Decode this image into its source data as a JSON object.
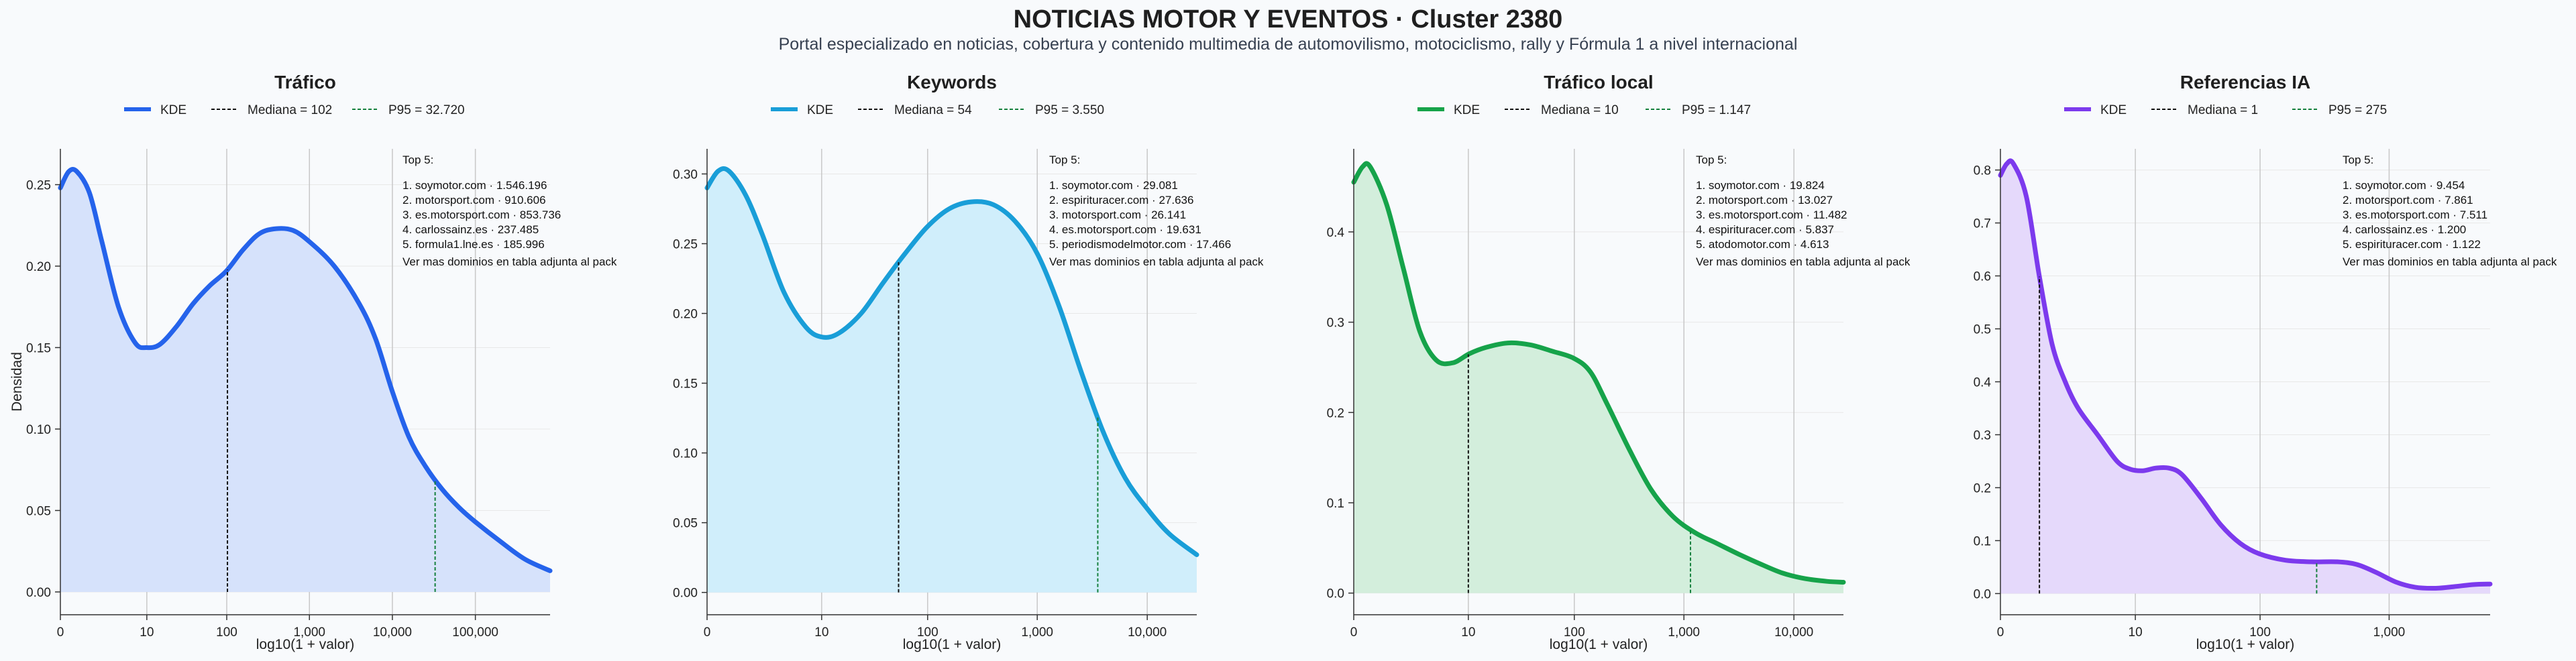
{
  "title": "NOTICIAS MOTOR Y EVENTOS · Cluster 2380",
  "subtitle": "Portal especializado en noticias, cobertura y contenido multimedia de automovilismo, motociclismo, rally y Fórmula 1 a nivel internacional",
  "chart_data": [
    {
      "type": "area",
      "title": "Tráfico",
      "xlabel": "log10(1 + valor)",
      "ylabel": "Densidad",
      "color": "#2563eb",
      "fill": "#d6e2fb",
      "xlim": [
        0,
        5.9
      ],
      "ylim": [
        -0.014,
        0.272
      ],
      "xticks": [
        {
          "v": 0,
          "label": "0"
        },
        {
          "v": 1.0414,
          "label": "10"
        },
        {
          "v": 2.0043,
          "label": "100"
        },
        {
          "v": 3.0004,
          "label": "1,000"
        },
        {
          "v": 4.0,
          "label": "10,000"
        },
        {
          "v": 5.0,
          "label": "100,000"
        }
      ],
      "yticks": [
        0,
        0.05,
        0.1,
        0.15,
        0.2,
        0.25
      ],
      "ytick_labels": [
        "0.00",
        "0.05",
        "0.10",
        "0.15",
        "0.20",
        "0.25"
      ],
      "legend": {
        "kde": "KDE",
        "median": "Mediana = 102",
        "p95": "P95 = 32.720"
      },
      "median_x": 2.0128,
      "p95_x": 4.5148,
      "curve": [
        [
          0,
          0.248
        ],
        [
          0.1,
          0.258
        ],
        [
          0.2,
          0.258
        ],
        [
          0.35,
          0.245
        ],
        [
          0.5,
          0.215
        ],
        [
          0.7,
          0.175
        ],
        [
          0.9,
          0.153
        ],
        [
          1.04,
          0.15
        ],
        [
          1.2,
          0.152
        ],
        [
          1.4,
          0.163
        ],
        [
          1.6,
          0.177
        ],
        [
          1.8,
          0.188
        ],
        [
          2.0,
          0.197
        ],
        [
          2.2,
          0.21
        ],
        [
          2.4,
          0.22
        ],
        [
          2.6,
          0.223
        ],
        [
          2.8,
          0.222
        ],
        [
          3.0,
          0.215
        ],
        [
          3.3,
          0.2
        ],
        [
          3.6,
          0.177
        ],
        [
          3.8,
          0.155
        ],
        [
          4.0,
          0.123
        ],
        [
          4.2,
          0.095
        ],
        [
          4.4,
          0.077
        ],
        [
          4.6,
          0.063
        ],
        [
          4.8,
          0.052
        ],
        [
          5.0,
          0.043
        ],
        [
          5.3,
          0.031
        ],
        [
          5.6,
          0.02
        ],
        [
          5.9,
          0.013
        ]
      ],
      "top5": {
        "heading": "Top 5:",
        "items": [
          "1. soymotor.com · 1.546.196",
          "2. motorsport.com · 910.606",
          "3. es.motorsport.com · 853.736",
          "4. carlossainz.es · 237.485",
          "5. formula1.lne.es · 185.996"
        ],
        "footer": "Ver mas dominios en tabla adjunta al pack"
      }
    },
    {
      "type": "area",
      "title": "Keywords",
      "xlabel": "log10(1 + valor)",
      "ylabel": "",
      "color": "#199ed8",
      "fill": "#d0eefb",
      "xlim": [
        0,
        4.45
      ],
      "ylim": [
        -0.016,
        0.318
      ],
      "xticks": [
        {
          "v": 0,
          "label": "0"
        },
        {
          "v": 1.0414,
          "label": "10"
        },
        {
          "v": 2.0043,
          "label": "100"
        },
        {
          "v": 3.0004,
          "label": "1,000"
        },
        {
          "v": 4.0,
          "label": "10,000"
        }
      ],
      "yticks": [
        0,
        0.05,
        0.1,
        0.15,
        0.2,
        0.25,
        0.3
      ],
      "ytick_labels": [
        "0.00",
        "0.05",
        "0.10",
        "0.15",
        "0.20",
        "0.25",
        "0.30"
      ],
      "legend": {
        "kde": "KDE",
        "median": "Mediana = 54",
        "p95": "P95 = 3.550"
      },
      "median_x": 1.7404,
      "p95_x": 3.5504,
      "curve": [
        [
          0,
          0.29
        ],
        [
          0.1,
          0.302
        ],
        [
          0.2,
          0.302
        ],
        [
          0.35,
          0.285
        ],
        [
          0.5,
          0.257
        ],
        [
          0.7,
          0.215
        ],
        [
          0.9,
          0.19
        ],
        [
          1.05,
          0.183
        ],
        [
          1.2,
          0.186
        ],
        [
          1.4,
          0.2
        ],
        [
          1.6,
          0.222
        ],
        [
          1.8,
          0.243
        ],
        [
          2.0,
          0.262
        ],
        [
          2.2,
          0.275
        ],
        [
          2.4,
          0.28
        ],
        [
          2.6,
          0.278
        ],
        [
          2.8,
          0.266
        ],
        [
          3.0,
          0.243
        ],
        [
          3.2,
          0.205
        ],
        [
          3.4,
          0.158
        ],
        [
          3.6,
          0.115
        ],
        [
          3.8,
          0.082
        ],
        [
          4.0,
          0.06
        ],
        [
          4.2,
          0.042
        ],
        [
          4.45,
          0.027
        ]
      ],
      "top5": {
        "heading": "Top 5:",
        "items": [
          "1. soymotor.com · 29.081",
          "2. espirituracer.com · 27.636",
          "3. motorsport.com · 26.141",
          "4. es.motorsport.com · 19.631",
          "5. periodismodelmotor.com · 17.466"
        ],
        "footer": "Ver mas dominios en tabla adjunta al pack"
      }
    },
    {
      "type": "area",
      "title": "Tráfico local",
      "xlabel": "log10(1 + valor)",
      "ylabel": "",
      "color": "#16a34a",
      "fill": "#d3eedc",
      "xlim": [
        0,
        4.45
      ],
      "ylim": [
        -0.024,
        0.492
      ],
      "xticks": [
        {
          "v": 0,
          "label": "0"
        },
        {
          "v": 1.0414,
          "label": "10"
        },
        {
          "v": 2.0043,
          "label": "100"
        },
        {
          "v": 3.0004,
          "label": "1,000"
        },
        {
          "v": 4.0,
          "label": "10,000"
        }
      ],
      "yticks": [
        0,
        0.1,
        0.2,
        0.3,
        0.4
      ],
      "ytick_labels": [
        "0.0",
        "0.1",
        "0.2",
        "0.3",
        "0.4"
      ],
      "legend": {
        "kde": "KDE",
        "median": "Mediana = 10",
        "p95": "P95 = 1.147"
      },
      "median_x": 1.0414,
      "p95_x": 3.0599,
      "curve": [
        [
          0,
          0.455
        ],
        [
          0.08,
          0.472
        ],
        [
          0.15,
          0.472
        ],
        [
          0.3,
          0.43
        ],
        [
          0.45,
          0.36
        ],
        [
          0.6,
          0.29
        ],
        [
          0.75,
          0.258
        ],
        [
          0.9,
          0.255
        ],
        [
          1.05,
          0.265
        ],
        [
          1.2,
          0.272
        ],
        [
          1.4,
          0.277
        ],
        [
          1.6,
          0.275
        ],
        [
          1.8,
          0.268
        ],
        [
          2.0,
          0.26
        ],
        [
          2.15,
          0.245
        ],
        [
          2.3,
          0.21
        ],
        [
          2.5,
          0.16
        ],
        [
          2.7,
          0.115
        ],
        [
          2.9,
          0.085
        ],
        [
          3.1,
          0.067
        ],
        [
          3.3,
          0.055
        ],
        [
          3.5,
          0.043
        ],
        [
          3.7,
          0.032
        ],
        [
          3.9,
          0.022
        ],
        [
          4.1,
          0.016
        ],
        [
          4.3,
          0.013
        ],
        [
          4.45,
          0.012
        ]
      ],
      "top5": {
        "heading": "Top 5:",
        "items": [
          "1. soymotor.com · 19.824",
          "2. motorsport.com · 13.027",
          "3. es.motorsport.com · 11.482",
          "4. espirituracer.com · 5.837",
          "5. atodomotor.com · 4.613"
        ],
        "footer": "Ver mas dominios en tabla adjunta al pack"
      }
    },
    {
      "type": "area",
      "title": "Referencias IA",
      "xlabel": "log10(1 + valor)",
      "ylabel": "",
      "color": "#7c3aed",
      "fill": "#e5d9fb",
      "xlim": [
        0,
        3.78
      ],
      "ylim": [
        -0.04,
        0.84
      ],
      "xticks": [
        {
          "v": 0,
          "label": "0"
        },
        {
          "v": 1.0414,
          "label": "10"
        },
        {
          "v": 2.0043,
          "label": "100"
        },
        {
          "v": 3.0004,
          "label": "1,000"
        }
      ],
      "yticks": [
        0,
        0.1,
        0.2,
        0.3,
        0.4,
        0.5,
        0.6,
        0.7,
        0.8
      ],
      "ytick_labels": [
        "0.0",
        "0.1",
        "0.2",
        "0.3",
        "0.4",
        "0.5",
        "0.6",
        "0.7",
        "0.8"
      ],
      "legend": {
        "kde": "KDE",
        "median": "Mediana = 1",
        "p95": "P95 = 275"
      },
      "median_x": 0.301,
      "p95_x": 2.4409,
      "curve": [
        [
          0,
          0.79
        ],
        [
          0.05,
          0.812
        ],
        [
          0.1,
          0.812
        ],
        [
          0.2,
          0.75
        ],
        [
          0.3,
          0.6
        ],
        [
          0.4,
          0.47
        ],
        [
          0.5,
          0.4
        ],
        [
          0.6,
          0.35
        ],
        [
          0.75,
          0.3
        ],
        [
          0.9,
          0.25
        ],
        [
          1.0,
          0.235
        ],
        [
          1.1,
          0.232
        ],
        [
          1.2,
          0.237
        ],
        [
          1.3,
          0.237
        ],
        [
          1.4,
          0.225
        ],
        [
          1.55,
          0.18
        ],
        [
          1.7,
          0.13
        ],
        [
          1.85,
          0.095
        ],
        [
          2.0,
          0.075
        ],
        [
          2.2,
          0.063
        ],
        [
          2.4,
          0.06
        ],
        [
          2.6,
          0.06
        ],
        [
          2.75,
          0.055
        ],
        [
          2.9,
          0.04
        ],
        [
          3.05,
          0.022
        ],
        [
          3.2,
          0.012
        ],
        [
          3.35,
          0.01
        ],
        [
          3.5,
          0.013
        ],
        [
          3.65,
          0.017
        ],
        [
          3.78,
          0.018
        ]
      ],
      "top5": {
        "heading": "Top 5:",
        "items": [
          "1. soymotor.com · 9.454",
          "2. motorsport.com · 7.861",
          "3. es.motorsport.com · 7.511",
          "4. carlossainz.es · 1.200",
          "5. espirituracer.com · 1.122"
        ],
        "footer": "Ver mas dominios en tabla adjunta al pack"
      }
    }
  ]
}
